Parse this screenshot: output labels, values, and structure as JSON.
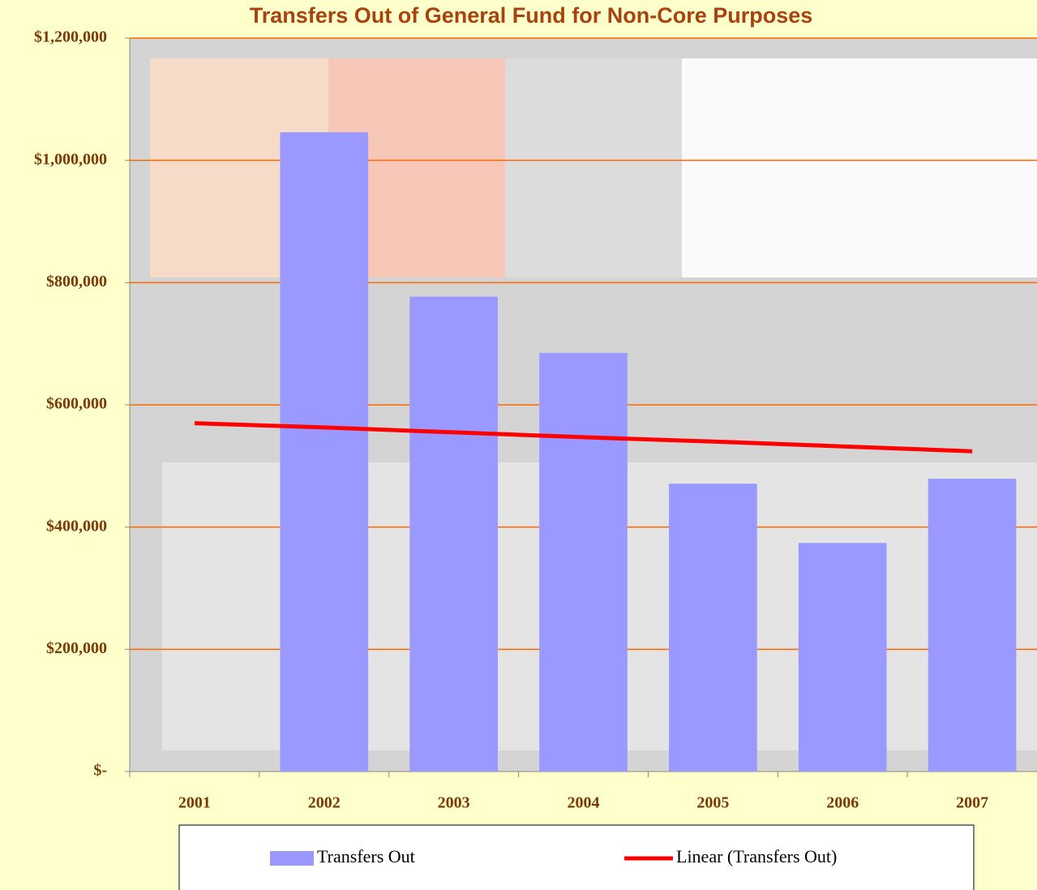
{
  "chart_data": {
    "type": "bar",
    "title": "Transfers Out of General Fund for Non-Core Purposes",
    "categories": [
      "2001",
      "2002",
      "2003",
      "2004",
      "2005",
      "2006",
      "2007"
    ],
    "series": [
      {
        "name": "Transfers Out",
        "type": "bar",
        "color": "#9999ff",
        "values": [
          0,
          1046000,
          777000,
          685000,
          471000,
          374000,
          479000
        ]
      },
      {
        "name": "Linear (Transfers Out)",
        "type": "line",
        "color": "#ff0000",
        "values": [
          570000,
          563000,
          555000,
          547000,
          540000,
          532000,
          524000
        ]
      }
    ],
    "ylim": [
      0,
      1200000
    ],
    "yticks": [
      {
        "value": 0,
        "label": "$-"
      },
      {
        "value": 200000,
        "label": "$200,000"
      },
      {
        "value": 400000,
        "label": "$400,000"
      },
      {
        "value": 600000,
        "label": "$600,000"
      },
      {
        "value": 800000,
        "label": "$800,000"
      },
      {
        "value": 1000000,
        "label": "$1,000,000"
      },
      {
        "value": 1200000,
        "label": "$1,200,000"
      }
    ],
    "grid": true,
    "grid_color": "#ff6600",
    "legend": "bottom"
  }
}
